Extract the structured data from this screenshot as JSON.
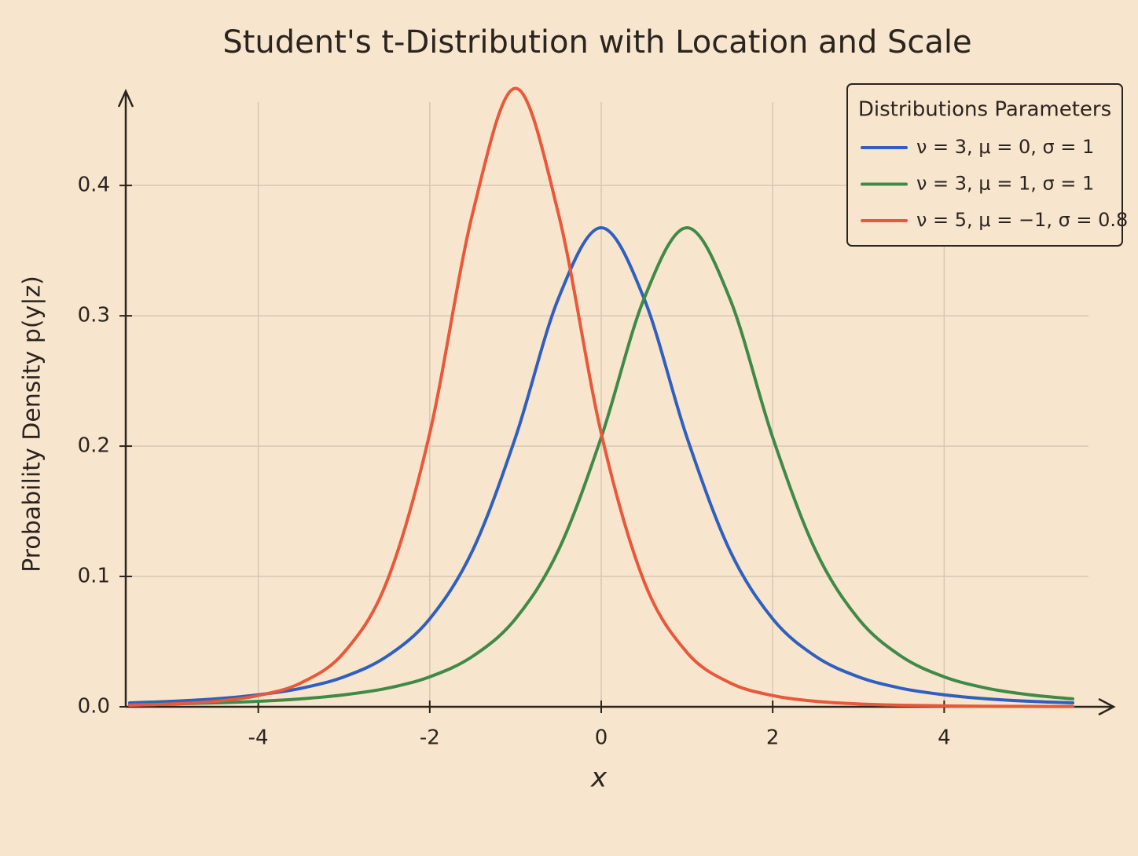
{
  "chart_data": {
    "type": "line",
    "title": "Student's t-Distribution with Location and Scale",
    "x_label": "x",
    "y_label": "Probability Density p(y|z)",
    "legend_title": "Distributions Parameters",
    "legend_position": "upper right",
    "grid": true,
    "xlim": [
      -5.5,
      5.5
    ],
    "ylim": [
      0,
      0.47
    ],
    "xticks": [
      -4,
      -2,
      0,
      2,
      4
    ],
    "yticks": [
      {
        "value": 0,
        "label": "0.0"
      },
      0.1,
      0.2,
      0.3,
      0.4
    ],
    "x": [
      -5.5,
      -5,
      -4.5,
      -4,
      -3.5,
      -3,
      -2.5,
      -2,
      -1.5,
      -1,
      -0.5,
      0,
      0.5,
      1,
      1.5,
      2,
      2.5,
      3,
      3.5,
      4,
      4.5,
      5,
      5.5
    ],
    "series": [
      {
        "name": "ν = 3, μ = 0, σ = 1",
        "color": "#2f5fc0",
        "values": [
          0.003,
          0.0042,
          0.0061,
          0.0092,
          0.0142,
          0.023,
          0.0387,
          0.0675,
          0.12,
          0.2067,
          0.3132,
          0.3676,
          0.3132,
          0.2067,
          0.12,
          0.0675,
          0.0387,
          0.023,
          0.0142,
          0.0092,
          0.0061,
          0.0042,
          0.003
        ]
      },
      {
        "name": "ν = 3, μ = 1, σ = 1",
        "color": "#3f8a47",
        "values": [
          0.0016,
          0.0022,
          0.003,
          0.0042,
          0.0061,
          0.0092,
          0.0142,
          0.023,
          0.0387,
          0.0675,
          0.12,
          0.2067,
          0.3132,
          0.3676,
          0.3132,
          0.2067,
          0.12,
          0.0675,
          0.0387,
          0.023,
          0.0142,
          0.0092,
          0.0061
        ]
      },
      {
        "name": "ν = 5, μ = −1, σ = 0.8",
        "color": "#e8583a",
        "values": [
          0.0012,
          0.0022,
          0.0042,
          0.0086,
          0.0184,
          0.0417,
          0.0961,
          0.2099,
          0.3786,
          0.4745,
          0.3786,
          0.2099,
          0.0961,
          0.0417,
          0.0184,
          0.0086,
          0.0042,
          0.0022,
          0.0012,
          0.0007,
          0.0004,
          0.0003,
          0.0002
        ]
      }
    ]
  }
}
